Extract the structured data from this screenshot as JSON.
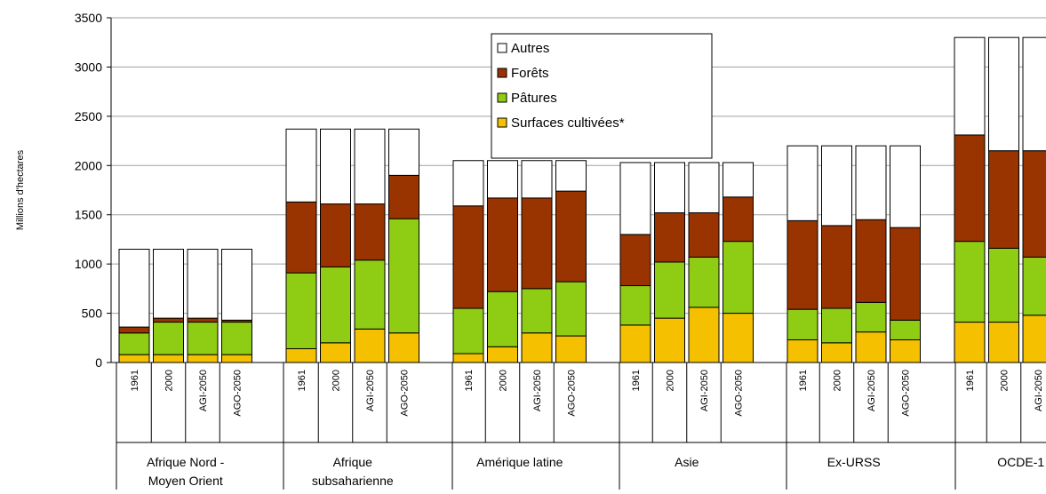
{
  "chart_data": {
    "type": "bar",
    "stacked": true,
    "ylabel": "Millions d'hectares",
    "ylim": [
      0,
      3500
    ],
    "yticks": [
      "0",
      "500",
      "1000",
      "1500",
      "2000",
      "2500",
      "3000",
      "3500"
    ],
    "grid": true,
    "legend_position": "top-center",
    "series": [
      {
        "name": "Surfaces cultivées*",
        "color": "#f5c000"
      },
      {
        "name": "Pâtures",
        "color": "#8fcc14"
      },
      {
        "name": "Forêts",
        "color": "#993300"
      },
      {
        "name": "Autres",
        "color": "#ffffff"
      }
    ],
    "legend_order": [
      "Autres",
      "Forêts",
      "Pâtures",
      "Surfaces cultivées*"
    ],
    "groups": [
      {
        "label_lines": [
          "Afrique Nord -",
          "Moyen Orient"
        ],
        "bars": [
          {
            "x": "1961",
            "values": [
              80,
              220,
              60,
              790
            ]
          },
          {
            "x": "2000",
            "values": [
              80,
              330,
              40,
              700
            ]
          },
          {
            "x": "AGI-2050",
            "values": [
              80,
              330,
              40,
              700
            ]
          },
          {
            "x": "AGO-2050",
            "values": [
              80,
              330,
              20,
              720
            ]
          }
        ]
      },
      {
        "label_lines": [
          "Afrique",
          "subsaharienne"
        ],
        "bars": [
          {
            "x": "1961",
            "values": [
              140,
              770,
              720,
              740
            ]
          },
          {
            "x": "2000",
            "values": [
              200,
              770,
              640,
              760
            ]
          },
          {
            "x": "AGI-2050",
            "values": [
              340,
              700,
              570,
              760
            ]
          },
          {
            "x": "AGO-2050",
            "values": [
              300,
              1160,
              440,
              470
            ]
          }
        ]
      },
      {
        "label_lines": [
          "Amérique latine"
        ],
        "bars": [
          {
            "x": "1961",
            "values": [
              90,
              460,
              1040,
              460
            ]
          },
          {
            "x": "2000",
            "values": [
              160,
              560,
              950,
              380
            ]
          },
          {
            "x": "AGI-2050",
            "values": [
              300,
              450,
              920,
              380
            ]
          },
          {
            "x": "AGO-2050",
            "values": [
              270,
              550,
              920,
              310
            ]
          }
        ]
      },
      {
        "label_lines": [
          "Asie"
        ],
        "bars": [
          {
            "x": "1961",
            "values": [
              380,
              400,
              520,
              730
            ]
          },
          {
            "x": "2000",
            "values": [
              450,
              570,
              500,
              510
            ]
          },
          {
            "x": "AGI-2050",
            "values": [
              560,
              510,
              450,
              510
            ]
          },
          {
            "x": "AGO-2050",
            "values": [
              500,
              730,
              450,
              350
            ]
          }
        ]
      },
      {
        "label_lines": [
          "Ex-URSS"
        ],
        "bars": [
          {
            "x": "1961",
            "values": [
              230,
              310,
              900,
              760
            ]
          },
          {
            "x": "2000",
            "values": [
              200,
              350,
              840,
              810
            ]
          },
          {
            "x": "AGI-2050",
            "values": [
              310,
              300,
              840,
              750
            ]
          },
          {
            "x": "AGO-2050",
            "values": [
              230,
              200,
              940,
              830
            ]
          }
        ]
      },
      {
        "label_lines": [
          "OCDE-1"
        ],
        "bars": [
          {
            "x": "1961",
            "values": [
              410,
              820,
              1080,
              990
            ]
          },
          {
            "x": "2000",
            "values": [
              410,
              750,
              990,
              1150
            ]
          },
          {
            "x": "AGI-2050",
            "values": [
              480,
              590,
              1080,
              1150
            ]
          }
        ]
      }
    ]
  }
}
